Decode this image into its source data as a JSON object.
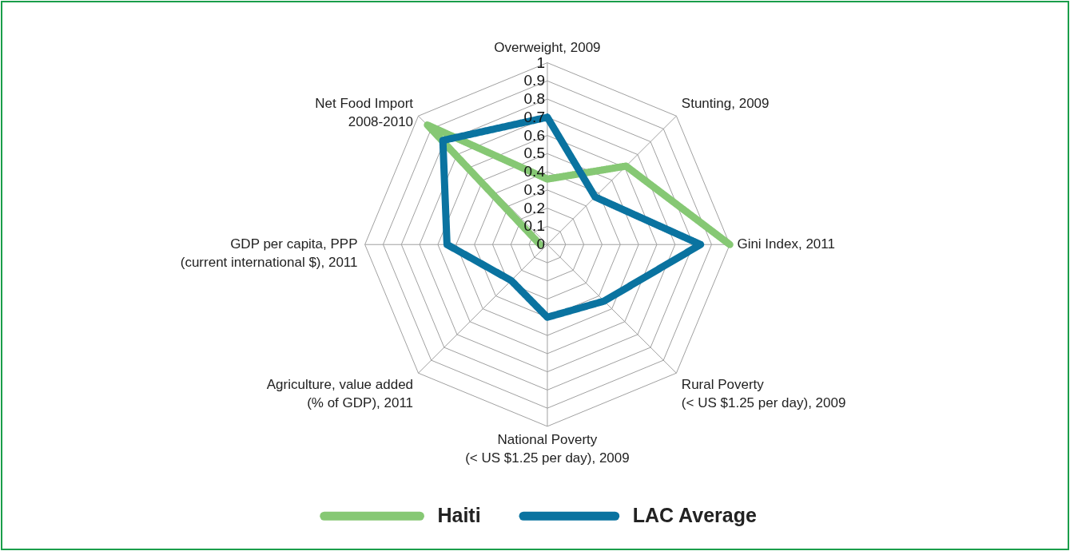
{
  "chart_data": {
    "type": "radar",
    "categories": [
      "Overweight, 2009",
      "Stunting, 2009",
      "Gini Index, 2011",
      "Rural Poverty\n(< US $1.25 per day), 2009",
      "National Poverty\n(< US $1.25 per day), 2009",
      "Agriculture, value added\n(% of GDP), 2011",
      "GDP per capita, PPP\n(current international $), 2011",
      "Net Food Import\n2008-2010"
    ],
    "series": [
      {
        "name": "Haiti",
        "color": "#86c874",
        "values": [
          0.36,
          0.61,
          1.0,
          null,
          null,
          null,
          0.04,
          0.93
        ]
      },
      {
        "name": "LAC Average",
        "color": "#0a73a0",
        "values": [
          0.7,
          0.37,
          0.84,
          0.44,
          0.4,
          0.28,
          0.55,
          0.81
        ]
      }
    ],
    "ylim": [
      0,
      1
    ],
    "yticks": [
      0,
      0.1,
      0.2,
      0.3,
      0.4,
      0.5,
      0.6,
      0.7,
      0.8,
      0.9,
      1
    ],
    "grid": true,
    "legend": "bottom",
    "marker": "none",
    "line_style": "solid"
  }
}
